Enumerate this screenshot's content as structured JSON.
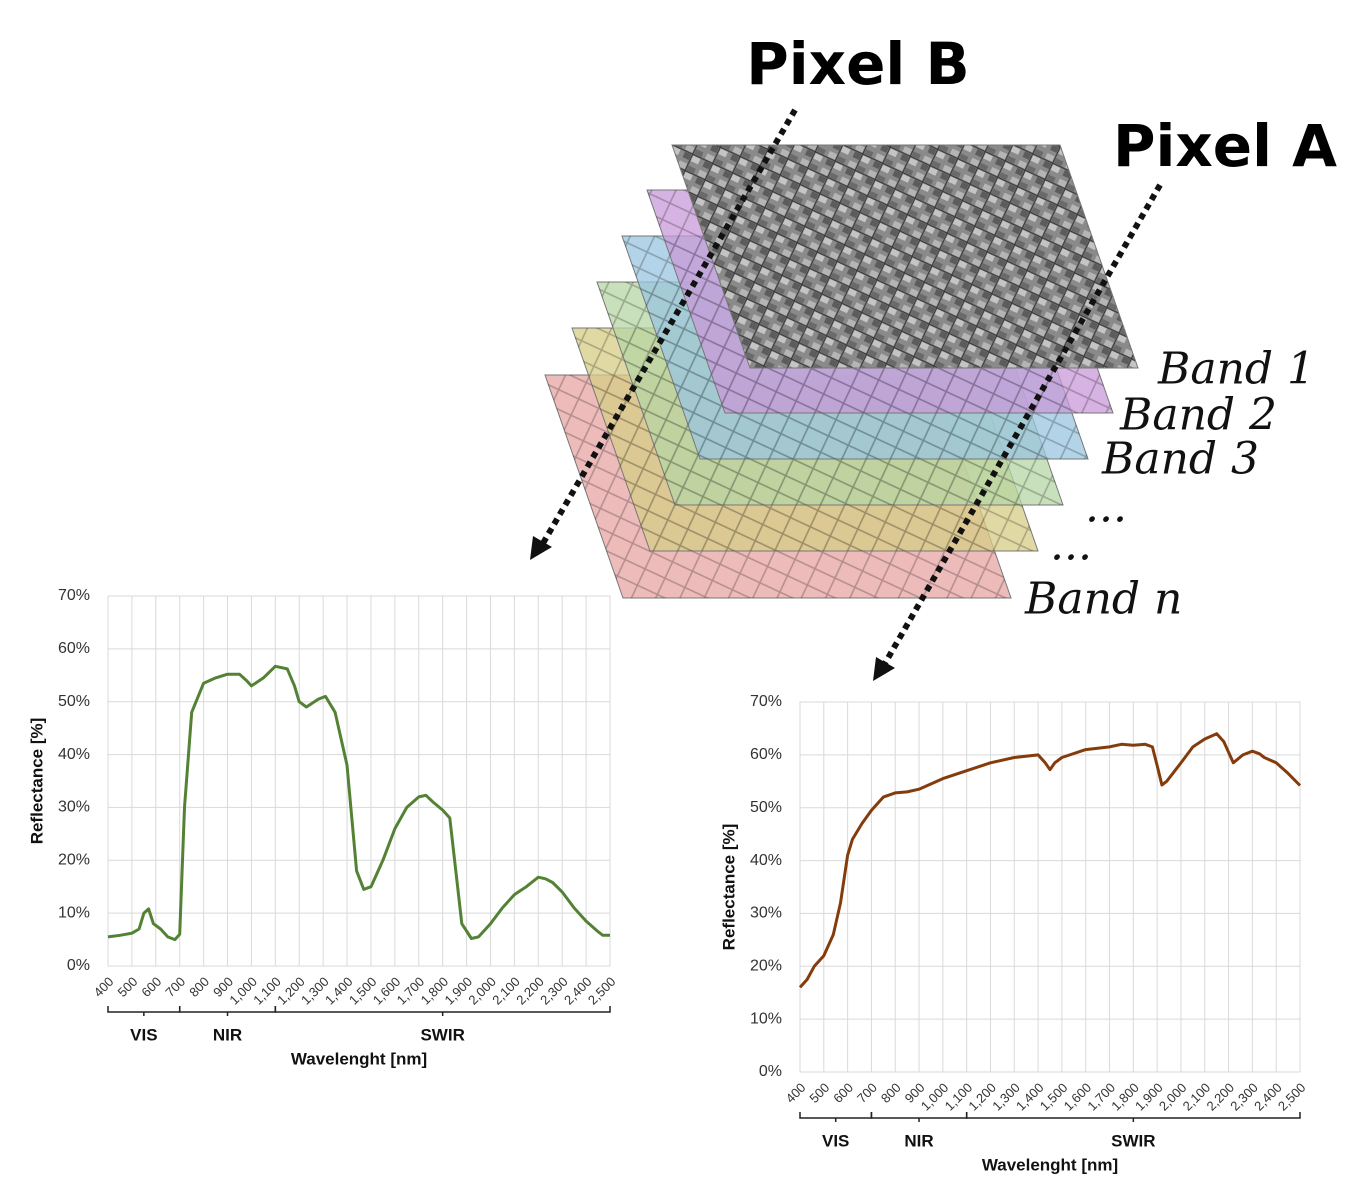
{
  "labels": {
    "pixel_b": "Pixel B",
    "pixel_a": "Pixel A",
    "bands": [
      "Band 1",
      "Band 2",
      "Band 3",
      "...",
      "...",
      "Band n"
    ]
  },
  "chart_data": [
    {
      "type": "line",
      "color": "#548235",
      "ylabel": "Reflectance [%]",
      "xlabel": "Wavelenght [nm]",
      "xlim": [
        400,
        2500
      ],
      "ylim": [
        0,
        70
      ],
      "xticks": [
        400,
        500,
        600,
        700,
        800,
        900,
        {
          "value": 1000,
          "label": "1,000"
        },
        {
          "value": 1100,
          "label": "1,100"
        },
        {
          "value": 1200,
          "label": "1,200"
        },
        {
          "value": 1300,
          "label": "1,300"
        },
        {
          "value": 1400,
          "label": "1,400"
        },
        {
          "value": 1500,
          "label": "1,500"
        },
        {
          "value": 1600,
          "label": "1,600"
        },
        {
          "value": 1700,
          "label": "1,700"
        },
        {
          "value": 1800,
          "label": "1,800"
        },
        {
          "value": 1900,
          "label": "1,900"
        },
        {
          "value": 2000,
          "label": "2,000"
        },
        {
          "value": 2100,
          "label": "2,100"
        },
        {
          "value": 2200,
          "label": "2,200"
        },
        {
          "value": 2300,
          "label": "2,300"
        },
        {
          "value": 2400,
          "label": "2,400"
        },
        {
          "value": 2500,
          "label": "2,500"
        }
      ],
      "yticks": [
        {
          "value": 0,
          "label": "0%"
        },
        {
          "value": 10,
          "label": "10%"
        },
        {
          "value": 20,
          "label": "20%"
        },
        {
          "value": 30,
          "label": "30%"
        },
        {
          "value": 40,
          "label": "40%"
        },
        {
          "value": 50,
          "label": "50%"
        },
        {
          "value": 60,
          "label": "60%"
        },
        {
          "value": 70,
          "label": "70%"
        }
      ],
      "grid": true,
      "regions": [
        {
          "label": "VIS",
          "range": [
            400,
            700
          ]
        },
        {
          "label": "NIR",
          "range": [
            700,
            1100
          ]
        },
        {
          "label": "SWIR",
          "range": [
            1100,
            2500
          ]
        }
      ],
      "x": [
        400,
        450,
        500,
        530,
        550,
        570,
        590,
        620,
        650,
        680,
        700,
        720,
        750,
        800,
        850,
        900,
        950,
        980,
        1000,
        1050,
        1100,
        1150,
        1180,
        1200,
        1230,
        1280,
        1310,
        1350,
        1400,
        1420,
        1440,
        1470,
        1500,
        1550,
        1600,
        1650,
        1700,
        1730,
        1760,
        1800,
        1830,
        1850,
        1880,
        1920,
        1950,
        2000,
        2050,
        2100,
        2150,
        2200,
        2230,
        2260,
        2300,
        2350,
        2400,
        2450,
        2470,
        2500
      ],
      "values": [
        5.5,
        5.8,
        6.2,
        7,
        10,
        10.8,
        8,
        7,
        5.5,
        5,
        6,
        30,
        48,
        53.5,
        54.5,
        55.2,
        55.2,
        54,
        53,
        54.5,
        56.7,
        56.2,
        53,
        50,
        49,
        50.5,
        51,
        48,
        38,
        28,
        18,
        14.5,
        15,
        20,
        26,
        30,
        32,
        32.3,
        31,
        29.5,
        28,
        20,
        8,
        5.2,
        5.5,
        8,
        11,
        13.5,
        15,
        16.8,
        16.5,
        15.8,
        14,
        11,
        8.5,
        6.5,
        5.8,
        5.8
      ]
    },
    {
      "type": "line",
      "color": "#843c0c",
      "ylabel": "Reflectance [%]",
      "xlabel": "Wavelenght [nm]",
      "xlim": [
        400,
        2500
      ],
      "ylim": [
        0,
        70
      ],
      "xticks": [
        400,
        500,
        600,
        700,
        800,
        900,
        {
          "value": 1000,
          "label": "1,000"
        },
        {
          "value": 1100,
          "label": "1,100"
        },
        {
          "value": 1200,
          "label": "1,200"
        },
        {
          "value": 1300,
          "label": "1,300"
        },
        {
          "value": 1400,
          "label": "1,400"
        },
        {
          "value": 1500,
          "label": "1,500"
        },
        {
          "value": 1600,
          "label": "1,600"
        },
        {
          "value": 1700,
          "label": "1,700"
        },
        {
          "value": 1800,
          "label": "1,800"
        },
        {
          "value": 1900,
          "label": "1,900"
        },
        {
          "value": 2000,
          "label": "2,000"
        },
        {
          "value": 2100,
          "label": "2,100"
        },
        {
          "value": 2200,
          "label": "2,200"
        },
        {
          "value": 2300,
          "label": "2,300"
        },
        {
          "value": 2400,
          "label": "2,400"
        },
        {
          "value": 2500,
          "label": "2,500"
        }
      ],
      "yticks": [
        {
          "value": 0,
          "label": "0%"
        },
        {
          "value": 10,
          "label": "10%"
        },
        {
          "value": 20,
          "label": "20%"
        },
        {
          "value": 30,
          "label": "30%"
        },
        {
          "value": 40,
          "label": "40%"
        },
        {
          "value": 50,
          "label": "50%"
        },
        {
          "value": 60,
          "label": "60%"
        },
        {
          "value": 70,
          "label": "70%"
        }
      ],
      "grid": true,
      "regions": [
        {
          "label": "VIS",
          "range": [
            400,
            700
          ]
        },
        {
          "label": "NIR",
          "range": [
            700,
            1100
          ]
        },
        {
          "label": "SWIR",
          "range": [
            1100,
            2500
          ]
        }
      ],
      "x": [
        400,
        430,
        460,
        500,
        540,
        570,
        600,
        620,
        660,
        700,
        750,
        800,
        850,
        900,
        1000,
        1100,
        1200,
        1300,
        1400,
        1430,
        1450,
        1470,
        1500,
        1600,
        1700,
        1750,
        1800,
        1850,
        1880,
        1900,
        1920,
        1940,
        2000,
        2050,
        2100,
        2150,
        2180,
        2220,
        2260,
        2300,
        2330,
        2350,
        2400,
        2450,
        2500
      ],
      "values": [
        16,
        17.5,
        20,
        22,
        26,
        32,
        41,
        44,
        47,
        49.5,
        52,
        52.8,
        53,
        53.5,
        55.5,
        57,
        58.5,
        59.5,
        60,
        58.5,
        57.2,
        58.5,
        59.5,
        61,
        61.5,
        62,
        61.8,
        62,
        61.5,
        58,
        54.3,
        55,
        58.5,
        61.5,
        63,
        64,
        62.5,
        58.5,
        60,
        60.7,
        60.2,
        59.5,
        58.5,
        56.5,
        54.2
      ]
    }
  ]
}
